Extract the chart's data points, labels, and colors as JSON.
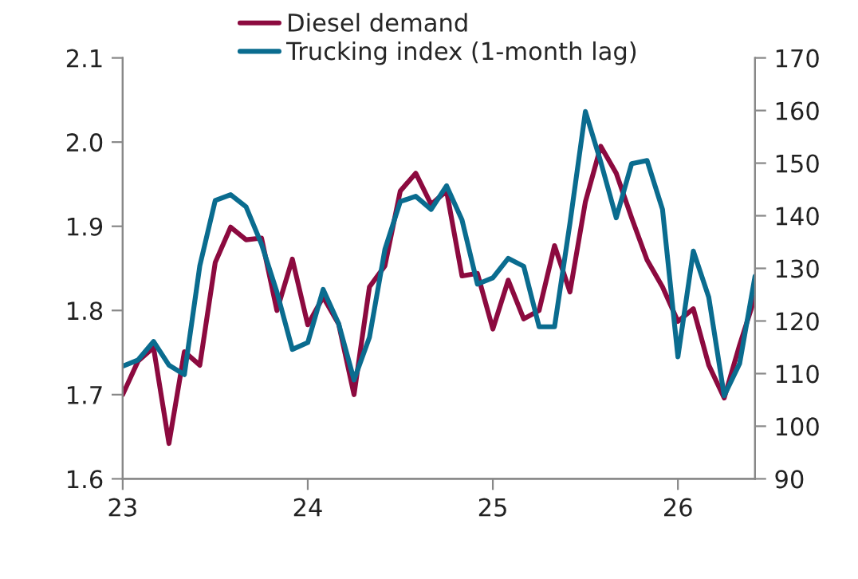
{
  "chart_data": {
    "type": "line",
    "x": [
      23.0,
      23.0833,
      23.1667,
      23.25,
      23.3333,
      23.4167,
      23.5,
      23.5833,
      23.6667,
      23.75,
      23.8333,
      23.9167,
      24.0,
      24.0833,
      24.1667,
      24.25,
      24.3333,
      24.4167,
      24.5,
      24.5833,
      24.6667,
      24.75,
      24.8333,
      24.9167,
      25.0,
      25.0833,
      25.1667,
      25.25,
      25.3333,
      25.4167,
      25.5,
      25.5833,
      25.6667,
      25.75,
      25.8333,
      25.9167,
      26.0,
      26.0833,
      26.1667,
      26.25,
      26.3333,
      26.4167
    ],
    "series": [
      {
        "name": "Diesel demand",
        "color": "#8c0a3f",
        "values": [
          1.7,
          1.74,
          1.756,
          1.642,
          1.751,
          1.735,
          1.857,
          1.899,
          1.884,
          1.886,
          1.8,
          1.861,
          1.783,
          1.816,
          1.784,
          1.7,
          1.828,
          1.853,
          1.942,
          1.963,
          1.926,
          1.942,
          1.841,
          1.844,
          1.778,
          1.836,
          1.79,
          1.8,
          1.877,
          1.822,
          1.929,
          1.995,
          1.963,
          1.91,
          1.86,
          1.828,
          1.787,
          1.802,
          1.735,
          1.696,
          1.759,
          1.816
        ]
      },
      {
        "name": "Trucking index (1-month lag)",
        "color": "#0a6c8f",
        "axis": "y2",
        "values": [
          111.4,
          112.6,
          116.1,
          111.6,
          109.8,
          130.5,
          142.9,
          144.0,
          141.7,
          134.6,
          125.5,
          114.6,
          115.9,
          126.0,
          119.5,
          108.8,
          116.9,
          133.6,
          142.7,
          143.7,
          141.2,
          145.7,
          139.2,
          127.0,
          128.2,
          131.9,
          130.4,
          118.9,
          118.9,
          138.6,
          159.8,
          150.2,
          139.6,
          149.9,
          150.5,
          141.2,
          113.2,
          133.3,
          124.5,
          105.8,
          111.9,
          128.5
        ]
      }
    ],
    "xlim": [
      23,
      26.4167
    ],
    "xticks": [
      23,
      24,
      25,
      26
    ],
    "ylim": [
      1.6,
      2.1
    ],
    "yticks": [
      1.6,
      1.7,
      1.8,
      1.9,
      {
        "value": 2,
        "label": "2.0"
      },
      2.1
    ],
    "y2lim": [
      90,
      170
    ],
    "y2ticks": [
      90,
      100,
      110,
      120,
      130,
      140,
      150,
      160,
      170
    ],
    "legend": "top",
    "grid": false,
    "marker": "none",
    "line_style": "solid"
  }
}
